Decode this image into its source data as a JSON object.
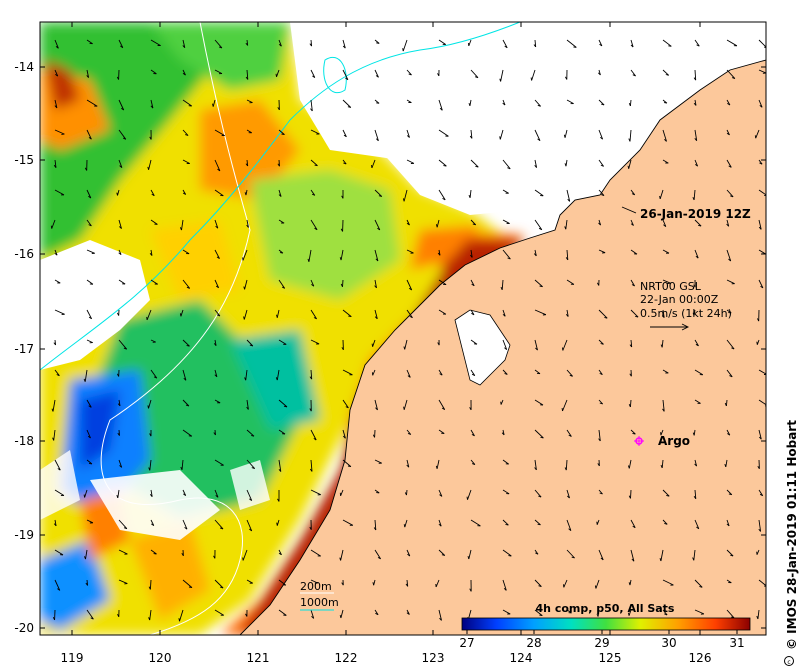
{
  "map": {
    "timestamp_label": "26-Jan-2019 12Z",
    "current_legend": {
      "line1": "NRT00 GSL",
      "line2": "22-Jan 00:00Z",
      "line3": "0.5m/s (1kt 24h)"
    },
    "argo_label": "Argo",
    "isobath_legend": {
      "shallow": "200m",
      "deep": "1000m",
      "shallow_color": "#ffffff",
      "deep_color": "#00e5e5"
    },
    "colorbar": {
      "title": "4h comp, p50, All Sats",
      "ticks": [
        "27",
        "28",
        "29",
        "30",
        "31"
      ]
    },
    "credit": "© IMOS 28-Jan-2019 01:11 Hobart",
    "lon_ticks": [
      "119",
      "120",
      "121",
      "122",
      "123",
      "124",
      "125",
      "126"
    ],
    "lat_ticks": [
      "-14",
      "-15",
      "-16",
      "-17",
      "-18",
      "-19",
      "-20"
    ],
    "colors": {
      "land": "#fcc89b",
      "argo": "#ff00ff",
      "sst_cold": "#000080",
      "sst_warm": "#8b0000"
    }
  }
}
